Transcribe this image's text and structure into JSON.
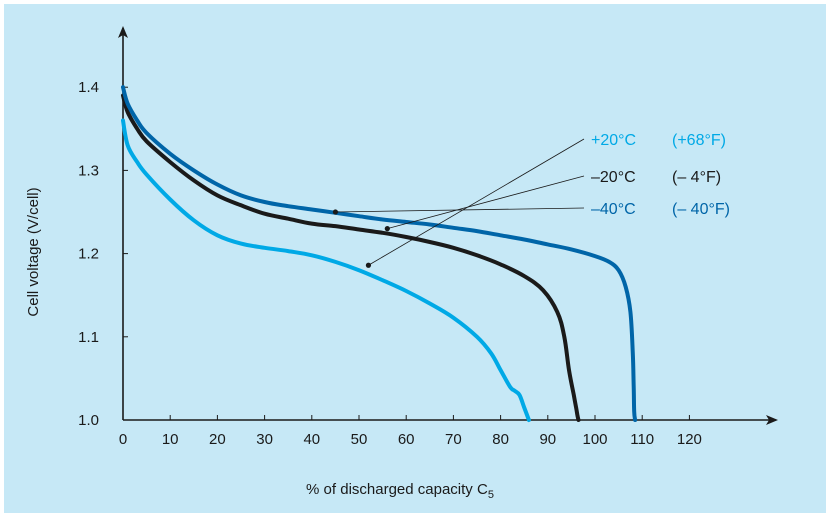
{
  "chart_data": {
    "type": "line",
    "title": "",
    "xlabel": "% of discharged capacity C",
    "xlabel_sub": "5",
    "ylabel": "Cell voltage   (V/cell)",
    "xlim": [
      0,
      130
    ],
    "ylim": [
      1.0,
      1.4
    ],
    "x_ticks": [
      "0",
      "10",
      "20",
      "30",
      "40",
      "50",
      "60",
      "70",
      "80",
      "90",
      "100",
      "110",
      "120"
    ],
    "y_ticks": [
      "1.0",
      "1.1",
      "1.2",
      "1.3",
      "1.4"
    ],
    "grid": false,
    "legend_position": "right",
    "series": [
      {
        "name": "+20°C",
        "name_f": "(+68°F)",
        "color": "#00a9e6",
        "x": [
          0,
          1,
          3,
          5,
          10,
          15,
          20,
          25,
          30,
          35,
          40,
          45,
          50,
          55,
          60,
          65,
          70,
          75,
          78,
          80,
          82,
          83,
          84,
          85,
          86
        ],
        "y": [
          1.36,
          1.33,
          1.31,
          1.295,
          1.265,
          1.24,
          1.222,
          1.212,
          1.207,
          1.203,
          1.198,
          1.19,
          1.18,
          1.168,
          1.155,
          1.14,
          1.123,
          1.1,
          1.08,
          1.06,
          1.04,
          1.035,
          1.03,
          1.015,
          1.0
        ]
      },
      {
        "name": "–20°C",
        "name_f": "(– 4°F)",
        "color": "#1a1a1a",
        "x": [
          0,
          1,
          3,
          5,
          10,
          15,
          20,
          25,
          30,
          35,
          40,
          45,
          50,
          55,
          60,
          65,
          70,
          75,
          80,
          85,
          89,
          92,
          93.5,
          94.5,
          95.5,
          96,
          96.3,
          96.5
        ],
        "y": [
          1.39,
          1.37,
          1.35,
          1.335,
          1.31,
          1.288,
          1.27,
          1.258,
          1.248,
          1.242,
          1.236,
          1.233,
          1.229,
          1.225,
          1.22,
          1.214,
          1.207,
          1.198,
          1.187,
          1.173,
          1.156,
          1.13,
          1.1,
          1.06,
          1.03,
          1.015,
          1.005,
          1.0
        ]
      },
      {
        "name": "–40°C",
        "name_f": "(– 40°F)",
        "color": "#0065a8",
        "x": [
          0,
          1,
          3,
          5,
          10,
          15,
          20,
          25,
          30,
          35,
          40,
          45,
          50,
          55,
          60,
          65,
          70,
          75,
          80,
          85,
          90,
          95,
          100,
          103,
          105,
          106.5,
          107.5,
          108,
          108.2,
          108.3,
          108.5
        ],
        "y": [
          1.4,
          1.38,
          1.36,
          1.345,
          1.32,
          1.3,
          1.283,
          1.27,
          1.262,
          1.257,
          1.253,
          1.249,
          1.245,
          1.241,
          1.238,
          1.235,
          1.231,
          1.227,
          1.222,
          1.217,
          1.211,
          1.205,
          1.197,
          1.19,
          1.18,
          1.16,
          1.13,
          1.08,
          1.04,
          1.01,
          1.0
        ]
      }
    ],
    "annotations": [
      {
        "series": 0,
        "point": [
          52,
          1.186
        ]
      },
      {
        "series": 1,
        "point": [
          56,
          1.23
        ]
      },
      {
        "series": 2,
        "point": [
          45,
          1.25
        ]
      }
    ]
  }
}
